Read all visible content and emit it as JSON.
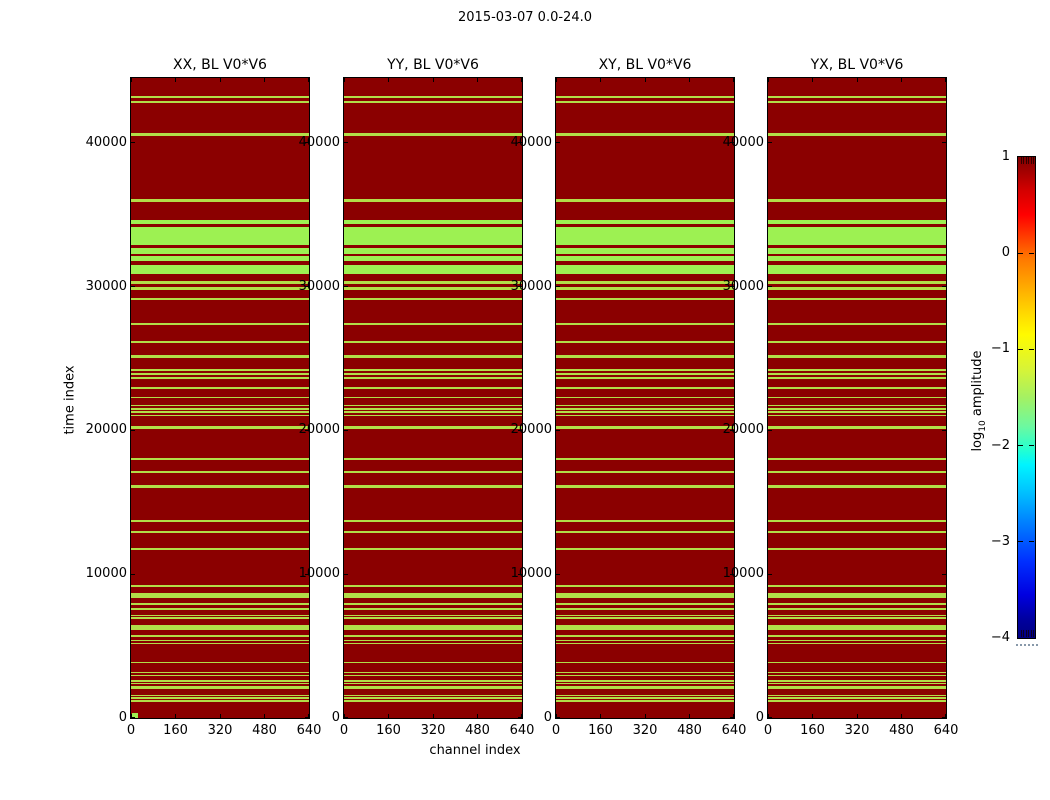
{
  "figure": {
    "title": "2015-03-07 0.0-24.0",
    "background_color": "#ffffff"
  },
  "chart_data": {
    "type": "heatmap",
    "title": "2015-03-07 0.0-24.0",
    "panels": [
      {
        "title": "XX, BL V0*V6"
      },
      {
        "title": "YY, BL V0*V6"
      },
      {
        "title": "XY, BL V0*V6"
      },
      {
        "title": "YX, BL V0*V6"
      }
    ],
    "xlabel": "channel index",
    "ylabel": "time index",
    "x_ticks": [
      "0",
      "160",
      "320",
      "480",
      "640"
    ],
    "x_tick_values": [
      0,
      160,
      320,
      480,
      640
    ],
    "y_ticks": [
      "0",
      "10000",
      "20000",
      "30000",
      "40000"
    ],
    "y_tick_values": [
      0,
      10000,
      20000,
      30000,
      40000
    ],
    "x_range": [
      0,
      640
    ],
    "y_range": [
      0,
      44500
    ],
    "grid": false,
    "colors": {
      "background_high_amplitude": "#8b0000",
      "stripe_low_amplitude": "#b2de48",
      "band_low_amplitude": "#9df152"
    },
    "value_legend": {
      "dark_red_rows": "log10 amplitude ~ 1 (high amplitude / clipped top of scale)",
      "green_rows": "log10 amplitude ~ -1.5 (low amplitude flagged time ranges)"
    },
    "flag_stripes_note": "Each entry is [time_index_center, time_extent, is_wide_band]; identical pattern appears in all four polarization panels.",
    "flag_stripes": [
      [
        43200,
        150,
        0
      ],
      [
        42850,
        150,
        0
      ],
      [
        40550,
        220,
        0
      ],
      [
        36000,
        220,
        0
      ],
      [
        34500,
        280,
        1
      ],
      [
        33520,
        1260,
        1
      ],
      [
        32480,
        420,
        1
      ],
      [
        31940,
        320,
        1
      ],
      [
        31210,
        650,
        1
      ],
      [
        30260,
        220,
        0
      ],
      [
        29850,
        180,
        0
      ],
      [
        29120,
        180,
        0
      ],
      [
        27420,
        150,
        0
      ],
      [
        26140,
        150,
        0
      ],
      [
        25140,
        150,
        0
      ],
      [
        24200,
        120,
        0
      ],
      [
        23920,
        120,
        0
      ],
      [
        23660,
        120,
        0
      ],
      [
        22930,
        150,
        0
      ],
      [
        22280,
        120,
        0
      ],
      [
        21740,
        120,
        0
      ],
      [
        21500,
        120,
        0
      ],
      [
        21260,
        120,
        0
      ],
      [
        21040,
        120,
        0
      ],
      [
        20190,
        220,
        0
      ],
      [
        18010,
        150,
        0
      ],
      [
        17080,
        150,
        0
      ],
      [
        16100,
        150,
        0
      ],
      [
        13690,
        150,
        0
      ],
      [
        12910,
        150,
        0
      ],
      [
        11750,
        150,
        0
      ],
      [
        9180,
        150,
        0
      ],
      [
        8520,
        320,
        0
      ],
      [
        7950,
        150,
        0
      ],
      [
        7590,
        150,
        0
      ],
      [
        7120,
        120,
        0
      ],
      [
        6940,
        120,
        0
      ],
      [
        6310,
        350,
        0
      ],
      [
        5690,
        150,
        0
      ],
      [
        5390,
        120,
        0
      ],
      [
        5180,
        120,
        0
      ],
      [
        3870,
        120,
        0
      ],
      [
        3170,
        120,
        0
      ],
      [
        2960,
        120,
        0
      ],
      [
        2570,
        120,
        0
      ],
      [
        2390,
        120,
        0
      ],
      [
        2100,
        220,
        0
      ],
      [
        1550,
        120,
        0
      ],
      [
        1380,
        120,
        0
      ],
      [
        1200,
        120,
        0
      ]
    ],
    "corner_marker": {
      "panel_index": 0,
      "channel_range": [
        5,
        25
      ],
      "time_range": [
        0,
        300
      ]
    },
    "colorbar": {
      "label_log": "log",
      "label_sub": "10",
      "label_rest": " amplitude",
      "ticks": [
        "1",
        "0",
        "−1",
        "−2",
        "−3",
        "−4"
      ],
      "tick_values": [
        1,
        0,
        -1,
        -2,
        -3,
        -4
      ],
      "range": [
        -4,
        1
      ],
      "colormap": "jet",
      "orientation": "vertical",
      "labels_side": "left"
    }
  }
}
